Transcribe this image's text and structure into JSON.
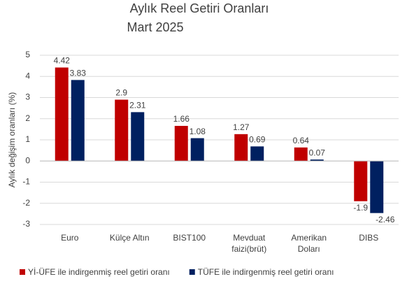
{
  "chart_data": {
    "type": "bar",
    "title": "Aylık Reel Getiri Oranları",
    "subtitle": "Mart 2025",
    "y_label": "Aylık değişim oranları (%)",
    "categories": [
      "Euro",
      "Külçe Altın",
      "BIST100",
      "Mevduat faizi(brüt)",
      "Amerikan Doları",
      "DIBS"
    ],
    "series": [
      {
        "name": "Yİ-ÜFE ile indirgenmiş reel getiri oranı",
        "color": "#c00000",
        "values": [
          4.42,
          2.9,
          1.66,
          1.27,
          0.64,
          -1.9
        ]
      },
      {
        "name": "TÜFE ile indirgenmiş reel getiri oranı",
        "color": "#002060",
        "values": [
          3.83,
          2.31,
          1.08,
          0.69,
          0.07,
          -2.46
        ]
      }
    ],
    "ylim": [
      -3,
      5
    ],
    "yticks": [
      -3,
      -2,
      -1,
      0,
      1,
      2,
      3,
      4,
      5
    ],
    "grid": true,
    "legend": "bottom"
  }
}
